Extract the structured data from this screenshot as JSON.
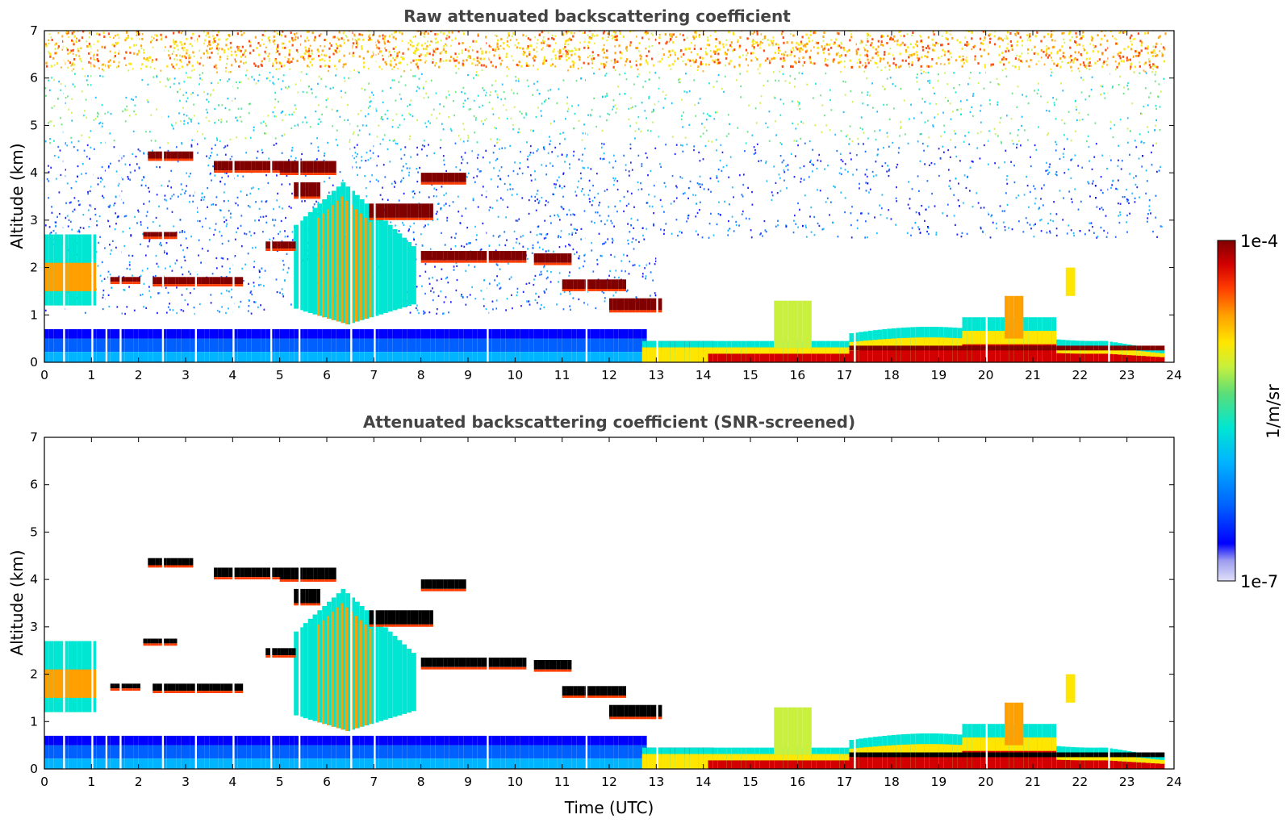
{
  "colors": {
    "title": "#444444",
    "colormap": [
      "#e0e0f8",
      "#9c9cf0",
      "#0000ff",
      "#0060ff",
      "#00b4ff",
      "#00e6d2",
      "#5ade78",
      "#c8f03c",
      "#ffe600",
      "#ffa000",
      "#ff3c00",
      "#d20000",
      "#800000"
    ],
    "screened_out": "#000000"
  },
  "chart_data": [
    {
      "id": "raw",
      "type": "heatmap",
      "title": "Raw attenuated backscattering coefficient",
      "xlabel": "",
      "ylabel": "Altitude (km)",
      "xlim": [
        0,
        24
      ],
      "ylim": [
        0,
        7
      ],
      "xticks": [
        "0",
        "1",
        "2",
        "3",
        "4",
        "5",
        "6",
        "7",
        "8",
        "9",
        "10",
        "11",
        "12",
        "13",
        "14",
        "15",
        "16",
        "17",
        "18",
        "19",
        "20",
        "21",
        "22",
        "23",
        "24"
      ],
      "yticks": [
        "0",
        "1",
        "2",
        "3",
        "4",
        "5",
        "6",
        "7"
      ],
      "data_end_time": 23.8,
      "features": [
        {
          "kind": "background_noise",
          "t": [
            0,
            13
          ],
          "alt": [
            1.0,
            7.0
          ]
        },
        {
          "kind": "background_noise_sparse",
          "t": [
            13,
            23.8
          ],
          "alt": [
            3.0,
            7.0
          ]
        },
        {
          "kind": "boundary_layer",
          "t": [
            0,
            12.7
          ],
          "top_km": 0.7
        },
        {
          "kind": "cloud_layer",
          "t": [
            2.2,
            3.1
          ],
          "alt_km": 4.3
        },
        {
          "kind": "cloud_layer",
          "t": [
            3.6,
            5.0
          ],
          "alt_km": 4.1
        },
        {
          "kind": "cloud_layer",
          "t": [
            5.0,
            6.2
          ],
          "alt_km": 4.1
        },
        {
          "kind": "cloud_layer",
          "t": [
            8.0,
            8.9
          ],
          "alt_km": 3.9
        },
        {
          "kind": "cloud_layer",
          "t": [
            6.9,
            8.2
          ],
          "alt_km": 3.2
        },
        {
          "kind": "cloud_layer",
          "t": [
            1.4,
            4.2
          ],
          "alt_km": 1.7
        },
        {
          "kind": "cloud_layer",
          "t": [
            8.0,
            10.2
          ],
          "alt_km": 2.2
        },
        {
          "kind": "cloud_layer",
          "t": [
            11.0,
            13.1
          ],
          "alt_km": 1.6
        },
        {
          "kind": "aerosol_layer",
          "t": [
            12.7,
            23.8
          ],
          "alt_km": 0.3
        }
      ]
    },
    {
      "id": "screened",
      "type": "heatmap",
      "title": "Attenuated backscattering coefficient (SNR-screened)",
      "xlabel": "Time (UTC)",
      "ylabel": "Altitude (km)",
      "xlim": [
        0,
        24
      ],
      "ylim": [
        0,
        7
      ],
      "xticks": [
        "0",
        "1",
        "2",
        "3",
        "4",
        "5",
        "6",
        "7",
        "8",
        "9",
        "10",
        "11",
        "12",
        "13",
        "14",
        "15",
        "16",
        "17",
        "18",
        "19",
        "20",
        "21",
        "22",
        "23",
        "24"
      ],
      "yticks": [
        "0",
        "1",
        "2",
        "3",
        "4",
        "5",
        "6",
        "7"
      ],
      "data_end_time": 23.8
    }
  ],
  "colorbar": {
    "label": "1/m/sr",
    "max_label": "1e-4",
    "min_label": "1e-7",
    "range": [
      1e-07,
      0.0001
    ],
    "scale": "log"
  }
}
